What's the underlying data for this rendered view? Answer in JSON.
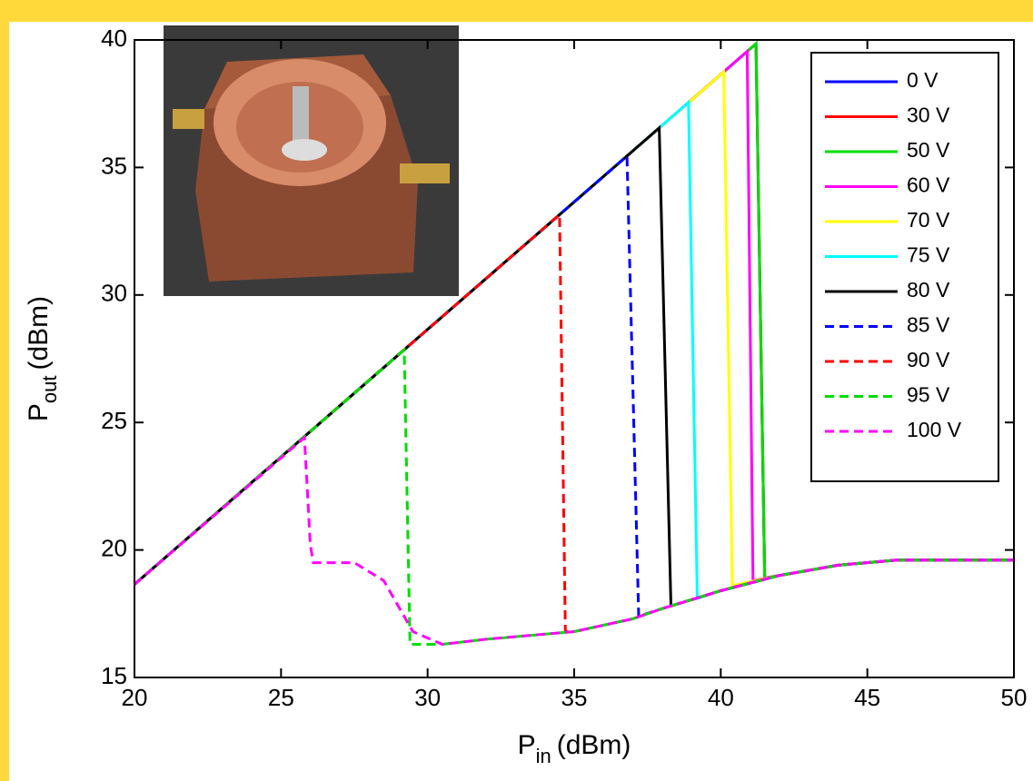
{
  "chart_data": {
    "type": "line",
    "x_label": {
      "main": "P",
      "sub": "in",
      "unit": "(dBm)"
    },
    "y_label": {
      "main": "P",
      "sub": "out",
      "unit": "(dBm)"
    },
    "xlim": [
      20,
      50
    ],
    "ylim": [
      15,
      40
    ],
    "xticks": [
      20,
      25,
      30,
      35,
      40,
      45,
      50
    ],
    "yticks": [
      15,
      20,
      25,
      30,
      35,
      40
    ],
    "legend": "upper right",
    "series": [
      {
        "name": "0 V",
        "color": "#0000ff",
        "dash": false,
        "x": [
          20,
          41.2,
          41.5,
          42,
          44,
          46,
          50
        ],
        "values": [
          18.65,
          39.85,
          18.9,
          19.0,
          19.4,
          19.6,
          19.6
        ]
      },
      {
        "name": "30 V",
        "color": "#ff0000",
        "dash": false,
        "x": [
          20,
          41.2,
          41.5,
          42,
          44,
          46,
          50
        ],
        "values": [
          18.65,
          39.85,
          18.9,
          19.0,
          19.4,
          19.6,
          19.6
        ]
      },
      {
        "name": "50 V",
        "color": "#00dd00",
        "dash": false,
        "x": [
          20,
          41.2,
          41.5,
          42,
          44,
          46,
          50
        ],
        "values": [
          18.65,
          39.85,
          18.9,
          19.0,
          19.4,
          19.6,
          19.6
        ]
      },
      {
        "name": "60 V",
        "color": "#ff00ff",
        "dash": false,
        "x": [
          20,
          40.9,
          41.1,
          42,
          44,
          46,
          50
        ],
        "values": [
          18.65,
          39.55,
          18.8,
          19.0,
          19.4,
          19.6,
          19.6
        ]
      },
      {
        "name": "70 V",
        "color": "#ffff00",
        "dash": false,
        "x": [
          20,
          40.1,
          40.4,
          42,
          44,
          46,
          50
        ],
        "values": [
          18.65,
          38.75,
          18.6,
          19.0,
          19.4,
          19.6,
          19.6
        ]
      },
      {
        "name": "75 V",
        "color": "#00ffff",
        "dash": false,
        "x": [
          20,
          38.9,
          39.2,
          40,
          42,
          44,
          46,
          50
        ],
        "values": [
          18.65,
          37.55,
          18.1,
          18.4,
          19.0,
          19.4,
          19.6,
          19.6
        ]
      },
      {
        "name": "80 V",
        "color": "#000000",
        "dash": false,
        "x": [
          20,
          37.9,
          38.3,
          40,
          42,
          44,
          46,
          50
        ],
        "values": [
          18.65,
          36.55,
          17.8,
          18.4,
          19.0,
          19.4,
          19.6,
          19.6
        ]
      },
      {
        "name": "85 V",
        "color": "#0000ff",
        "dash": true,
        "x": [
          20,
          36.8,
          37.2,
          38,
          40,
          42,
          44,
          46,
          50
        ],
        "values": [
          18.65,
          35.45,
          17.4,
          17.7,
          18.4,
          19.0,
          19.4,
          19.6,
          19.6
        ]
      },
      {
        "name": "90 V",
        "color": "#ff0000",
        "dash": true,
        "x": [
          20,
          34.5,
          34.7,
          35,
          37,
          38,
          40,
          42,
          44,
          46,
          50
        ],
        "values": [
          18.65,
          33.15,
          16.8,
          16.8,
          17.3,
          17.7,
          18.4,
          19.0,
          19.4,
          19.6,
          19.6
        ]
      },
      {
        "name": "95 V",
        "color": "#00dd00",
        "dash": true,
        "x": [
          20,
          29.2,
          29.4,
          30.5,
          32,
          35,
          37,
          38,
          40,
          42,
          44,
          46,
          50
        ],
        "values": [
          18.65,
          27.85,
          16.3,
          16.3,
          16.5,
          16.8,
          17.3,
          17.7,
          18.4,
          19.0,
          19.4,
          19.6,
          19.6
        ]
      },
      {
        "name": "100 V",
        "color": "#ff00ff",
        "dash": true,
        "x": [
          20,
          25.8,
          26.0,
          26.1,
          27.5,
          28.5,
          29.5,
          30.5,
          32,
          35,
          37,
          38,
          40,
          42,
          44,
          46,
          50
        ],
        "values": [
          18.65,
          24.4,
          20.2,
          19.5,
          19.5,
          18.8,
          16.8,
          16.3,
          16.5,
          16.8,
          17.3,
          17.7,
          18.4,
          19.0,
          19.4,
          19.6,
          19.6
        ]
      }
    ]
  }
}
